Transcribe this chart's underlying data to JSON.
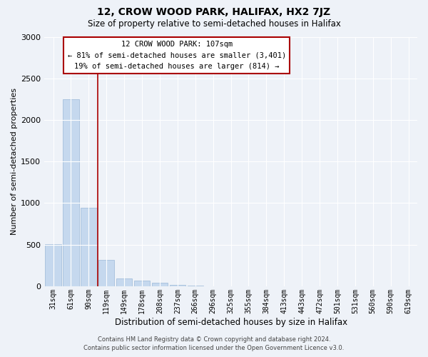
{
  "title": "12, CROW WOOD PARK, HALIFAX, HX2 7JZ",
  "subtitle": "Size of property relative to semi-detached houses in Halifax",
  "xlabel": "Distribution of semi-detached houses by size in Halifax",
  "ylabel": "Number of semi-detached properties",
  "bar_color": "#c5d8ee",
  "bar_edge_color": "#9ab8d8",
  "background_color": "#eef2f8",
  "grid_color": "#ffffff",
  "annotation_box_color": "#aa0000",
  "vline_color": "#aa0000",
  "categories": [
    "31sqm",
    "61sqm",
    "90sqm",
    "119sqm",
    "149sqm",
    "178sqm",
    "208sqm",
    "237sqm",
    "266sqm",
    "296sqm",
    "325sqm",
    "355sqm",
    "384sqm",
    "413sqm",
    "443sqm",
    "472sqm",
    "501sqm",
    "531sqm",
    "560sqm",
    "590sqm",
    "619sqm"
  ],
  "values": [
    510,
    2250,
    940,
    320,
    95,
    65,
    38,
    20,
    8,
    3,
    0,
    0,
    0,
    0,
    0,
    0,
    0,
    0,
    0,
    0,
    0
  ],
  "ylim": [
    0,
    3000
  ],
  "yticks": [
    0,
    500,
    1000,
    1500,
    2000,
    2500,
    3000
  ],
  "vline_x_index": 2.5,
  "annotation_text_line1": "12 CROW WOOD PARK: 107sqm",
  "annotation_text_line2": "← 81% of semi-detached houses are smaller (3,401)",
  "annotation_text_line3": "19% of semi-detached houses are larger (814) →",
  "footer_line1": "Contains HM Land Registry data © Crown copyright and database right 2024.",
  "footer_line2": "Contains public sector information licensed under the Open Government Licence v3.0."
}
